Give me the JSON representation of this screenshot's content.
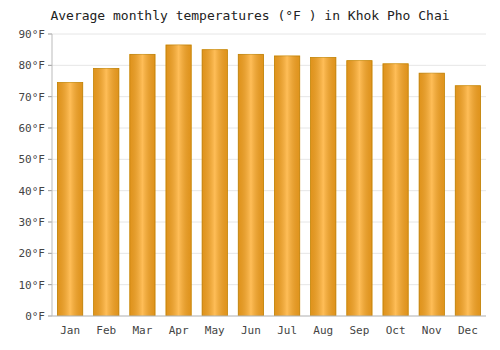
{
  "chart_data": {
    "type": "bar",
    "title": "Average monthly temperatures (°F ) in Khok Pho Chai",
    "categories": [
      "Jan",
      "Feb",
      "Mar",
      "Apr",
      "May",
      "Jun",
      "Jul",
      "Aug",
      "Sep",
      "Oct",
      "Nov",
      "Dec"
    ],
    "values": [
      74.5,
      79.0,
      83.5,
      86.5,
      85.0,
      83.5,
      83.0,
      82.5,
      81.5,
      80.5,
      77.5,
      73.5
    ],
    "color": "#FFA820",
    "ylim": [
      0,
      90
    ],
    "yticks": [
      {
        "value": 0,
        "label": "0°F"
      },
      {
        "value": 10,
        "label": "10°F"
      },
      {
        "value": 20,
        "label": "20°F"
      },
      {
        "value": 30,
        "label": "30°F"
      },
      {
        "value": 40,
        "label": "40°F"
      },
      {
        "value": 50,
        "label": "50°F"
      },
      {
        "value": 60,
        "label": "60°F"
      },
      {
        "value": 70,
        "label": "70°F"
      },
      {
        "value": 80,
        "label": "80°F"
      },
      {
        "value": 90,
        "label": "90°F"
      }
    ],
    "grid": true
  }
}
